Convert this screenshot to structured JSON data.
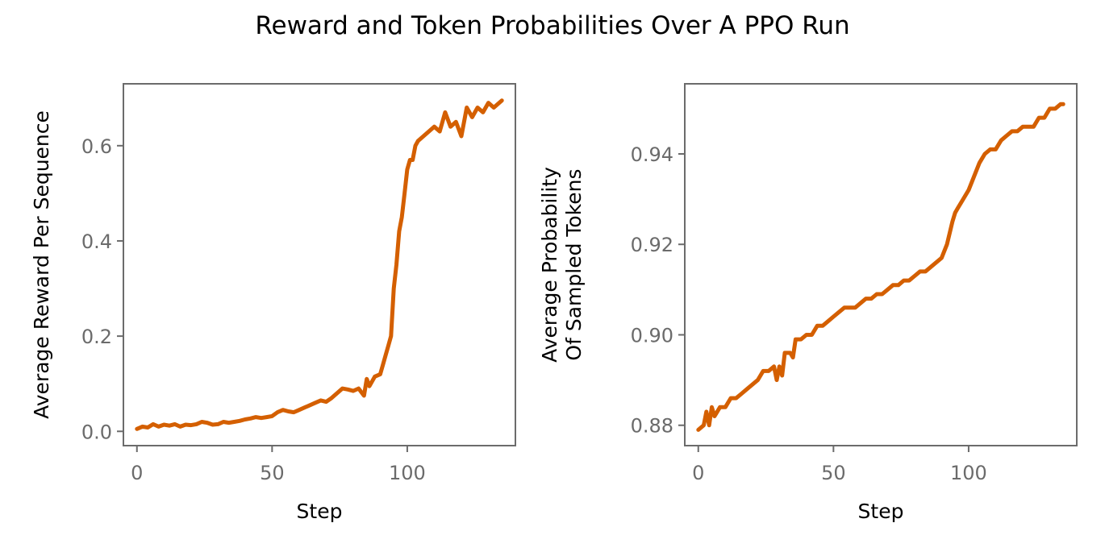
{
  "figure": {
    "title": "Reward and Token Probabilities Over A PPO Run"
  },
  "colors": {
    "line": "#d45f00",
    "axis": "#6b6b6b"
  },
  "chart_data": [
    {
      "type": "line",
      "xlabel": "Step",
      "ylabel": "Average Reward Per Sequence",
      "xlim": [
        -5,
        140
      ],
      "ylim": [
        -0.03,
        0.73
      ],
      "xticks": [
        0,
        50,
        100
      ],
      "xtick_labels": [
        "0",
        "50",
        "100"
      ],
      "yticks": [
        0.0,
        0.2,
        0.4,
        0.6
      ],
      "ytick_labels": [
        "0.0",
        "0.2",
        "0.4",
        "0.6"
      ],
      "series": [
        {
          "x": [
            0,
            2,
            4,
            6,
            8,
            10,
            12,
            14,
            16,
            18,
            20,
            22,
            24,
            26,
            28,
            30,
            32,
            34,
            36,
            38,
            40,
            42,
            44,
            46,
            48,
            50,
            52,
            54,
            56,
            58,
            60,
            62,
            64,
            66,
            68,
            70,
            72,
            74,
            76,
            78,
            80,
            82,
            84,
            85,
            86,
            88,
            90,
            91,
            92,
            93,
            94,
            95,
            96,
            97,
            98,
            99,
            100,
            101,
            102,
            103,
            104,
            106,
            108,
            110,
            112,
            114,
            116,
            118,
            120,
            122,
            124,
            126,
            128,
            130,
            132,
            134,
            135
          ],
          "y": [
            0.005,
            0.01,
            0.008,
            0.015,
            0.01,
            0.014,
            0.012,
            0.015,
            0.01,
            0.014,
            0.013,
            0.015,
            0.02,
            0.018,
            0.014,
            0.015,
            0.02,
            0.018,
            0.02,
            0.022,
            0.025,
            0.027,
            0.03,
            0.028,
            0.03,
            0.032,
            0.04,
            0.045,
            0.042,
            0.04,
            0.045,
            0.05,
            0.055,
            0.06,
            0.065,
            0.062,
            0.07,
            0.08,
            0.09,
            0.088,
            0.085,
            0.09,
            0.075,
            0.11,
            0.095,
            0.115,
            0.12,
            0.14,
            0.16,
            0.18,
            0.2,
            0.3,
            0.35,
            0.42,
            0.45,
            0.5,
            0.55,
            0.57,
            0.57,
            0.6,
            0.61,
            0.62,
            0.63,
            0.64,
            0.63,
            0.67,
            0.64,
            0.65,
            0.62,
            0.68,
            0.66,
            0.68,
            0.67,
            0.69,
            0.68,
            0.69,
            0.695
          ]
        }
      ]
    },
    {
      "type": "line",
      "xlabel": "Step",
      "ylabel": "Average Probability Of Sampled Tokens",
      "ylabel_lines": [
        "Average Probability",
        "Of Sampled Tokens"
      ],
      "xlim": [
        -5,
        140
      ],
      "ylim": [
        0.8755,
        0.9555
      ],
      "xticks": [
        0,
        50,
        100
      ],
      "xtick_labels": [
        "0",
        "50",
        "100"
      ],
      "yticks": [
        0.88,
        0.9,
        0.92,
        0.94
      ],
      "ytick_labels": [
        "0.88",
        "0.90",
        "0.92",
        "0.94"
      ],
      "series": [
        {
          "x": [
            0,
            2,
            3,
            4,
            5,
            6,
            8,
            10,
            12,
            14,
            16,
            18,
            20,
            22,
            24,
            26,
            28,
            29,
            30,
            31,
            32,
            34,
            35,
            36,
            38,
            40,
            42,
            44,
            46,
            48,
            50,
            52,
            54,
            56,
            58,
            60,
            62,
            64,
            66,
            68,
            70,
            72,
            74,
            76,
            78,
            80,
            82,
            84,
            86,
            88,
            90,
            92,
            94,
            95,
            96,
            98,
            100,
            102,
            104,
            106,
            108,
            110,
            112,
            114,
            116,
            118,
            120,
            122,
            124,
            126,
            128,
            130,
            132,
            134,
            135
          ],
          "y": [
            0.879,
            0.88,
            0.883,
            0.88,
            0.884,
            0.882,
            0.884,
            0.884,
            0.886,
            0.886,
            0.887,
            0.888,
            0.889,
            0.89,
            0.892,
            0.892,
            0.893,
            0.89,
            0.893,
            0.891,
            0.896,
            0.896,
            0.895,
            0.899,
            0.899,
            0.9,
            0.9,
            0.902,
            0.902,
            0.903,
            0.904,
            0.905,
            0.906,
            0.906,
            0.906,
            0.907,
            0.908,
            0.908,
            0.909,
            0.909,
            0.91,
            0.911,
            0.911,
            0.912,
            0.912,
            0.913,
            0.914,
            0.914,
            0.915,
            0.916,
            0.917,
            0.92,
            0.925,
            0.927,
            0.928,
            0.93,
            0.932,
            0.935,
            0.938,
            0.94,
            0.941,
            0.941,
            0.943,
            0.944,
            0.945,
            0.945,
            0.946,
            0.946,
            0.946,
            0.948,
            0.948,
            0.95,
            0.95,
            0.951,
            0.951
          ]
        }
      ]
    }
  ]
}
